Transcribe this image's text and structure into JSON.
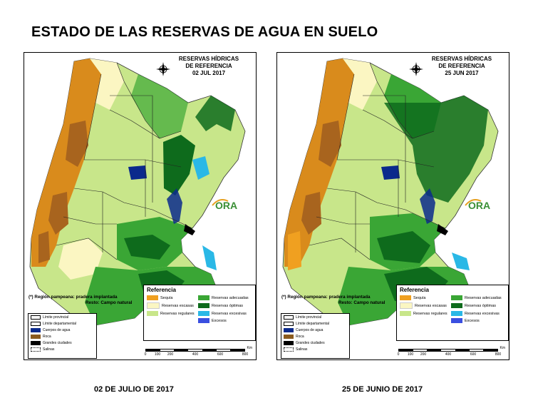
{
  "title": "ESTADO DE LAS RESERVAS DE AGUA EN SUELO",
  "panels": [
    {
      "heading_line1": "RESERVAS HÍDRICAS",
      "heading_line2": "DE REFERENCIA",
      "date": "02 JUL 2017",
      "caption": "02 DE JULIO DE 2017"
    },
    {
      "heading_line1": "RESERVAS HÍDRICAS",
      "heading_line2": "DE REFERENCIA",
      "date": "25 JUN 2017",
      "caption": "25 DE JUNIO DE 2017"
    }
  ],
  "note": {
    "line1": "(*) Región pampeana: pradera implantada",
    "line2": "Resto: Campo natural"
  },
  "logo_text": "ORA",
  "legend_left": [
    {
      "label": "Límite provincial",
      "color": "#ffffff",
      "icon": "thick-border"
    },
    {
      "label": "Límite departamental",
      "color": "#ffffff",
      "icon": "thin-border"
    },
    {
      "label": "Cuerpos de agua",
      "color": "#0a2a8c",
      "icon": "fill"
    },
    {
      "label": "Roca",
      "color": "#8a5a1e",
      "icon": "fill"
    },
    {
      "label": "Grandes ciudades",
      "color": "#000000",
      "icon": "fill"
    },
    {
      "label": "Salinas",
      "color": "#ffffff",
      "icon": "dotted"
    }
  ],
  "legend_right": {
    "title": "Referencia",
    "items": [
      {
        "label": "Sequía",
        "color": "#f0a020"
      },
      {
        "label": "Reservas adecuadas",
        "color": "#3aa635"
      },
      {
        "label": "Reservas escasas",
        "color": "#fbf6c2"
      },
      {
        "label": "Reservas óptimas",
        "color": "#0e6b1c"
      },
      {
        "label": "Reservas regulares",
        "color": "#c8e68a"
      },
      {
        "label": "Reservas excesivas",
        "color": "#2ab8e6"
      },
      {
        "label": "",
        "color": ""
      },
      {
        "label": "Excesos",
        "color": "#3a4fe0"
      }
    ]
  },
  "scale": {
    "ticks": [
      "0",
      "100",
      "200",
      "400",
      "600",
      "800"
    ],
    "unit": "Km"
  },
  "colors": {
    "drought": "#d98b1c",
    "rock": "#a8641e",
    "scarce": "#fbf6c2",
    "regular": "#c8e68a",
    "adequate": "#3aa635",
    "optimal": "#0e6b1c",
    "excessive": "#2ab8e6",
    "water": "#0a2a8c"
  }
}
